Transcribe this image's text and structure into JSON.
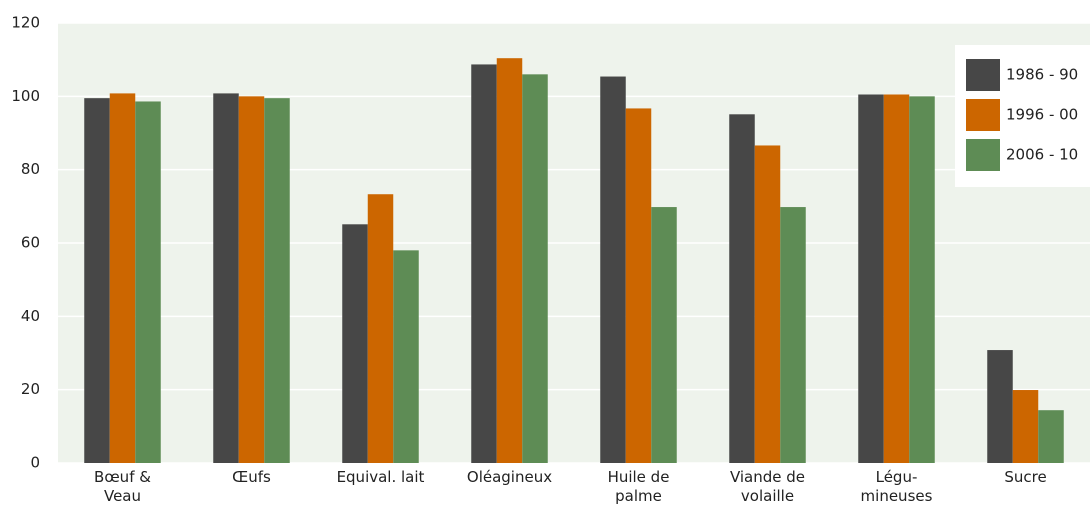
{
  "chart_data": {
    "type": "bar",
    "categories": [
      "Bœuf &\nVeau",
      "Œufs",
      "Equival. lait",
      "Oléagineux",
      "Huile de\npalme",
      "Viande de\nvolaille",
      "Légu-\nmineuses",
      "Sucre"
    ],
    "series": [
      {
        "name": "1986 - 90",
        "color": "#474747",
        "values": [
          99.5,
          100.8,
          65.1,
          108.7,
          105.4,
          95.1,
          100.5,
          30.8
        ]
      },
      {
        "name": "1996 - 00",
        "color": "#cc6600",
        "values": [
          100.8,
          100,
          73.3,
          110.4,
          96.7,
          86.6,
          100.5,
          19.9
        ]
      },
      {
        "name": "2006 - 10",
        "color": "#5e8c55",
        "values": [
          98.6,
          99.5,
          58,
          106,
          69.8,
          69.8,
          100,
          14.4
        ]
      }
    ],
    "ylim": [
      0,
      120
    ],
    "yticks": [
      0,
      20,
      40,
      60,
      80,
      100,
      120
    ],
    "grid": true,
    "legend": "upper right"
  }
}
